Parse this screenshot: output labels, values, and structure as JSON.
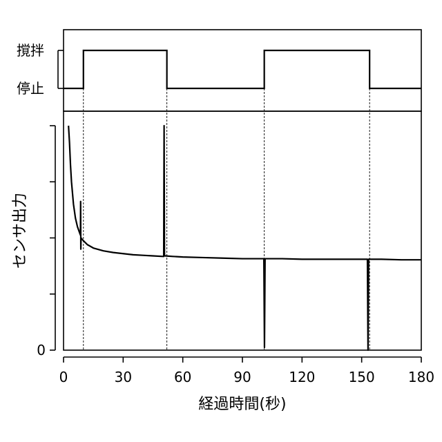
{
  "chart_data": {
    "type": "line",
    "xlabel": "経過時間(秒)",
    "ylabel": "センサ出力",
    "xlim": [
      0,
      180
    ],
    "x_ticks": [
      0,
      30,
      60,
      90,
      120,
      150,
      180
    ],
    "y_ticks": [
      0,
      1,
      2,
      3,
      4
    ],
    "y_tick_labels_shown": [
      "0"
    ],
    "ylim": [
      0,
      4
    ],
    "grid": false,
    "stirring_state": {
      "labels": {
        "on": "撹拌",
        "off": "停止"
      },
      "segments": [
        {
          "state": "off",
          "x": [
            0,
            10
          ]
        },
        {
          "state": "on",
          "x": [
            10,
            52
          ]
        },
        {
          "state": "off",
          "x": [
            52,
            101
          ]
        },
        {
          "state": "on",
          "x": [
            101,
            154
          ]
        },
        {
          "state": "off",
          "x": [
            154,
            180
          ]
        }
      ],
      "transition_times": [
        10,
        52,
        101,
        154
      ]
    },
    "series": [
      {
        "x": [
          2.5,
          3,
          3.5,
          4,
          5,
          6,
          7,
          8,
          8.5,
          8.6,
          8.7,
          8.8,
          10,
          12,
          15,
          20,
          25,
          30,
          35,
          40,
          45,
          50,
          50.4,
          50.6,
          50.8,
          51,
          55,
          60,
          70,
          80,
          90,
          100,
          100.8,
          101.1,
          101.4,
          101.7,
          102,
          110,
          120,
          130,
          140,
          150,
          152.6,
          152.9,
          153.2,
          153.5,
          154,
          160,
          170,
          180
        ],
        "y": [
          4.0,
          3.7,
          3.3,
          3.0,
          2.6,
          2.35,
          2.2,
          2.1,
          2.05,
          2.65,
          1.8,
          2.0,
          1.95,
          1.88,
          1.82,
          1.77,
          1.74,
          1.72,
          1.7,
          1.69,
          1.68,
          1.67,
          1.67,
          4.0,
          1.7,
          1.68,
          1.67,
          1.66,
          1.65,
          1.64,
          1.63,
          1.63,
          1.63,
          0.05,
          1.63,
          1.63,
          1.63,
          1.63,
          1.62,
          1.62,
          1.62,
          1.62,
          1.62,
          1.62,
          0.0,
          1.62,
          1.62,
          1.62,
          1.61,
          1.61
        ]
      }
    ]
  }
}
